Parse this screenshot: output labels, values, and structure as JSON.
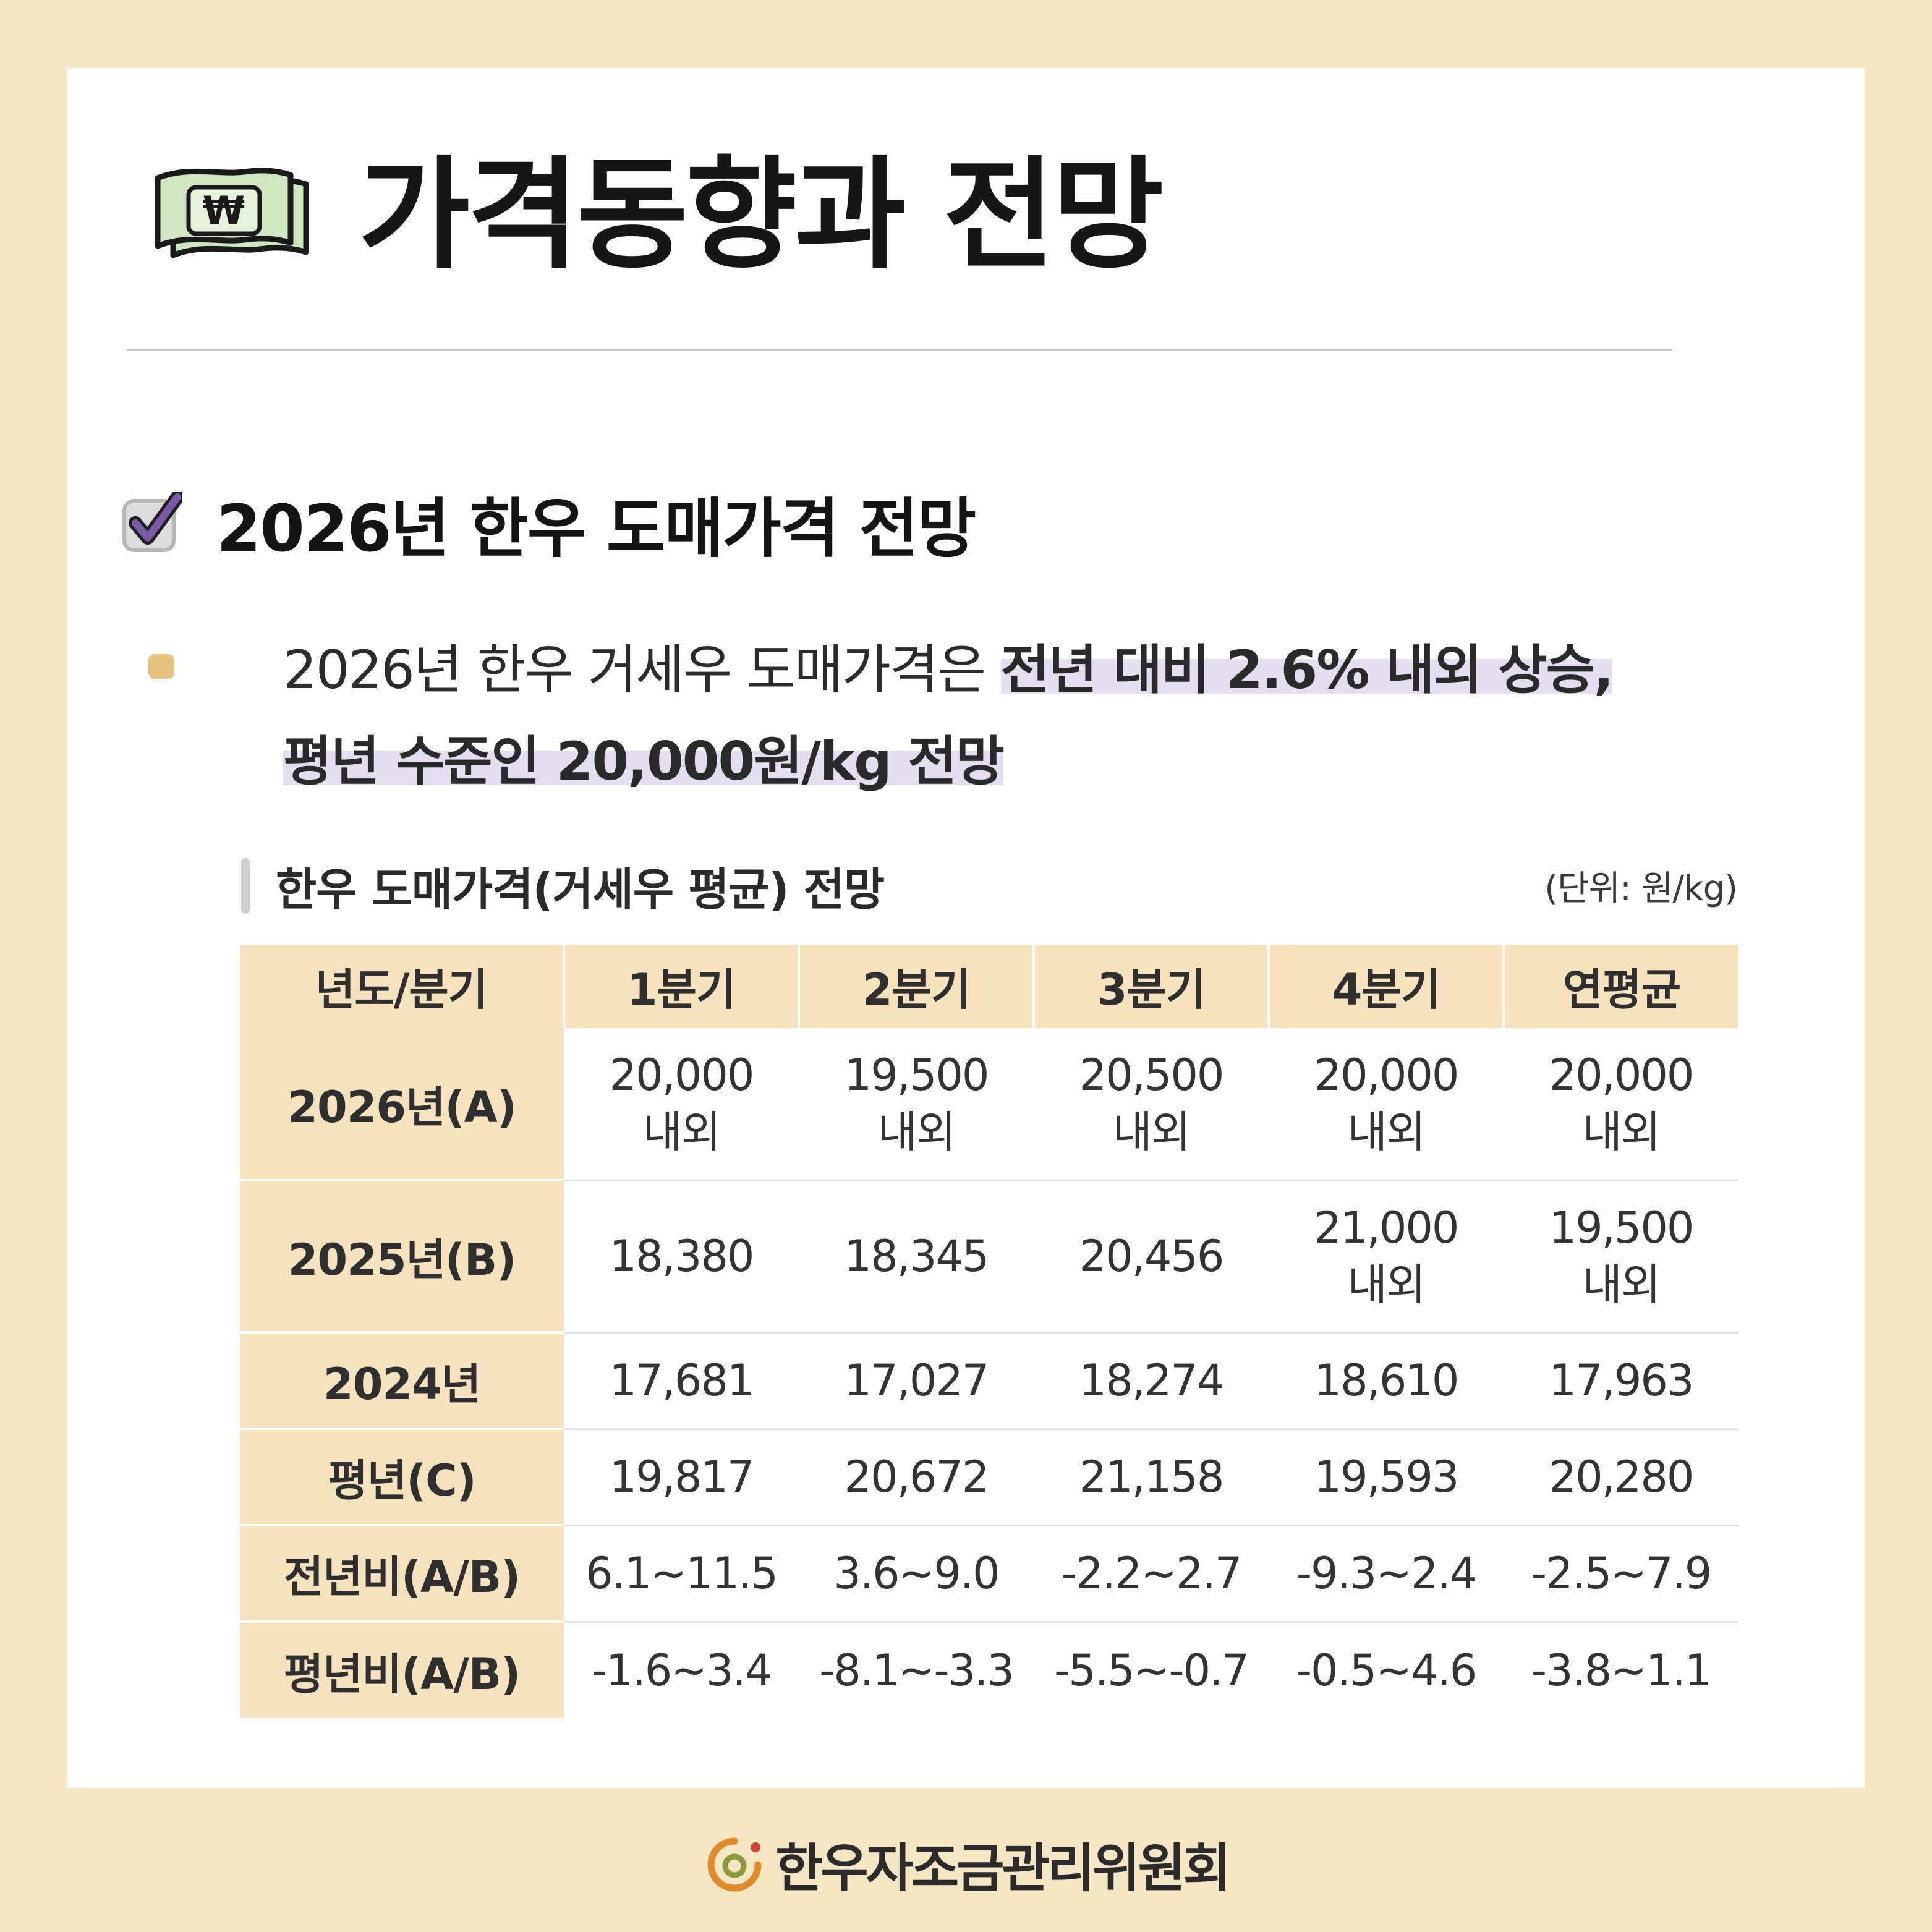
{
  "header": {
    "title": "가격동향과 전망",
    "icon": "money-bill-icon"
  },
  "section": {
    "title": "2026년 한우 도매가격 전망",
    "icon": "checkbox-checked-icon"
  },
  "bullet": {
    "text_plain": "2026년 한우 거세우 도매가격은 ",
    "text_highlight_1": "전년 대비 2.6% 내외 상승,",
    "text_highlight_2": "평년 수준인 20,000원/kg 전망"
  },
  "table": {
    "title": "한우 도매가격(거세우 평균) 전망",
    "unit": "(단위: 원/kg)",
    "headers": [
      "년도/분기",
      "1분기",
      "2분기",
      "3분기",
      "4분기",
      "연평균"
    ],
    "rows": [
      {
        "label": "2026년(A)",
        "cells": [
          [
            "20,000",
            "내외"
          ],
          [
            "19,500",
            "내외"
          ],
          [
            "20,500",
            "내외"
          ],
          [
            "20,000",
            "내외"
          ],
          [
            "20,000",
            "내외"
          ]
        ]
      },
      {
        "label": "2025년(B)",
        "cells": [
          [
            "18,380"
          ],
          [
            "18,345"
          ],
          [
            "20,456"
          ],
          [
            "21,000",
            "내외"
          ],
          [
            "19,500",
            "내외"
          ]
        ]
      },
      {
        "label": "2024년",
        "cells": [
          [
            "17,681"
          ],
          [
            "17,027"
          ],
          [
            "18,274"
          ],
          [
            "18,610"
          ],
          [
            "17,963"
          ]
        ]
      },
      {
        "label": "평년(C)",
        "cells": [
          [
            "19,817"
          ],
          [
            "20,672"
          ],
          [
            "21,158"
          ],
          [
            "19,593"
          ],
          [
            "20,280"
          ]
        ]
      },
      {
        "label": "전년비(A/B)",
        "cells": [
          [
            "6.1~11.5"
          ],
          [
            "3.6~9.0"
          ],
          [
            "-2.2~2.7"
          ],
          [
            "-9.3~2.4"
          ],
          [
            "-2.5~7.9"
          ]
        ]
      },
      {
        "label": "평년비(A/B)",
        "cells": [
          [
            "-1.6~3.4"
          ],
          [
            "-8.1~-3.3"
          ],
          [
            "-5.5~-0.7"
          ],
          [
            "-0.5~4.6"
          ],
          [
            "-3.8~1.1"
          ]
        ]
      }
    ]
  },
  "footer": {
    "org_name": "한우자조금관리위원회",
    "logo": "hanwoo-logo-icon"
  },
  "colors": {
    "background": "#f6e6c3",
    "header_cell": "#f6e3bd",
    "highlight": "#e4def0",
    "bullet": "#e6c47f",
    "check": "#6a4b93"
  }
}
